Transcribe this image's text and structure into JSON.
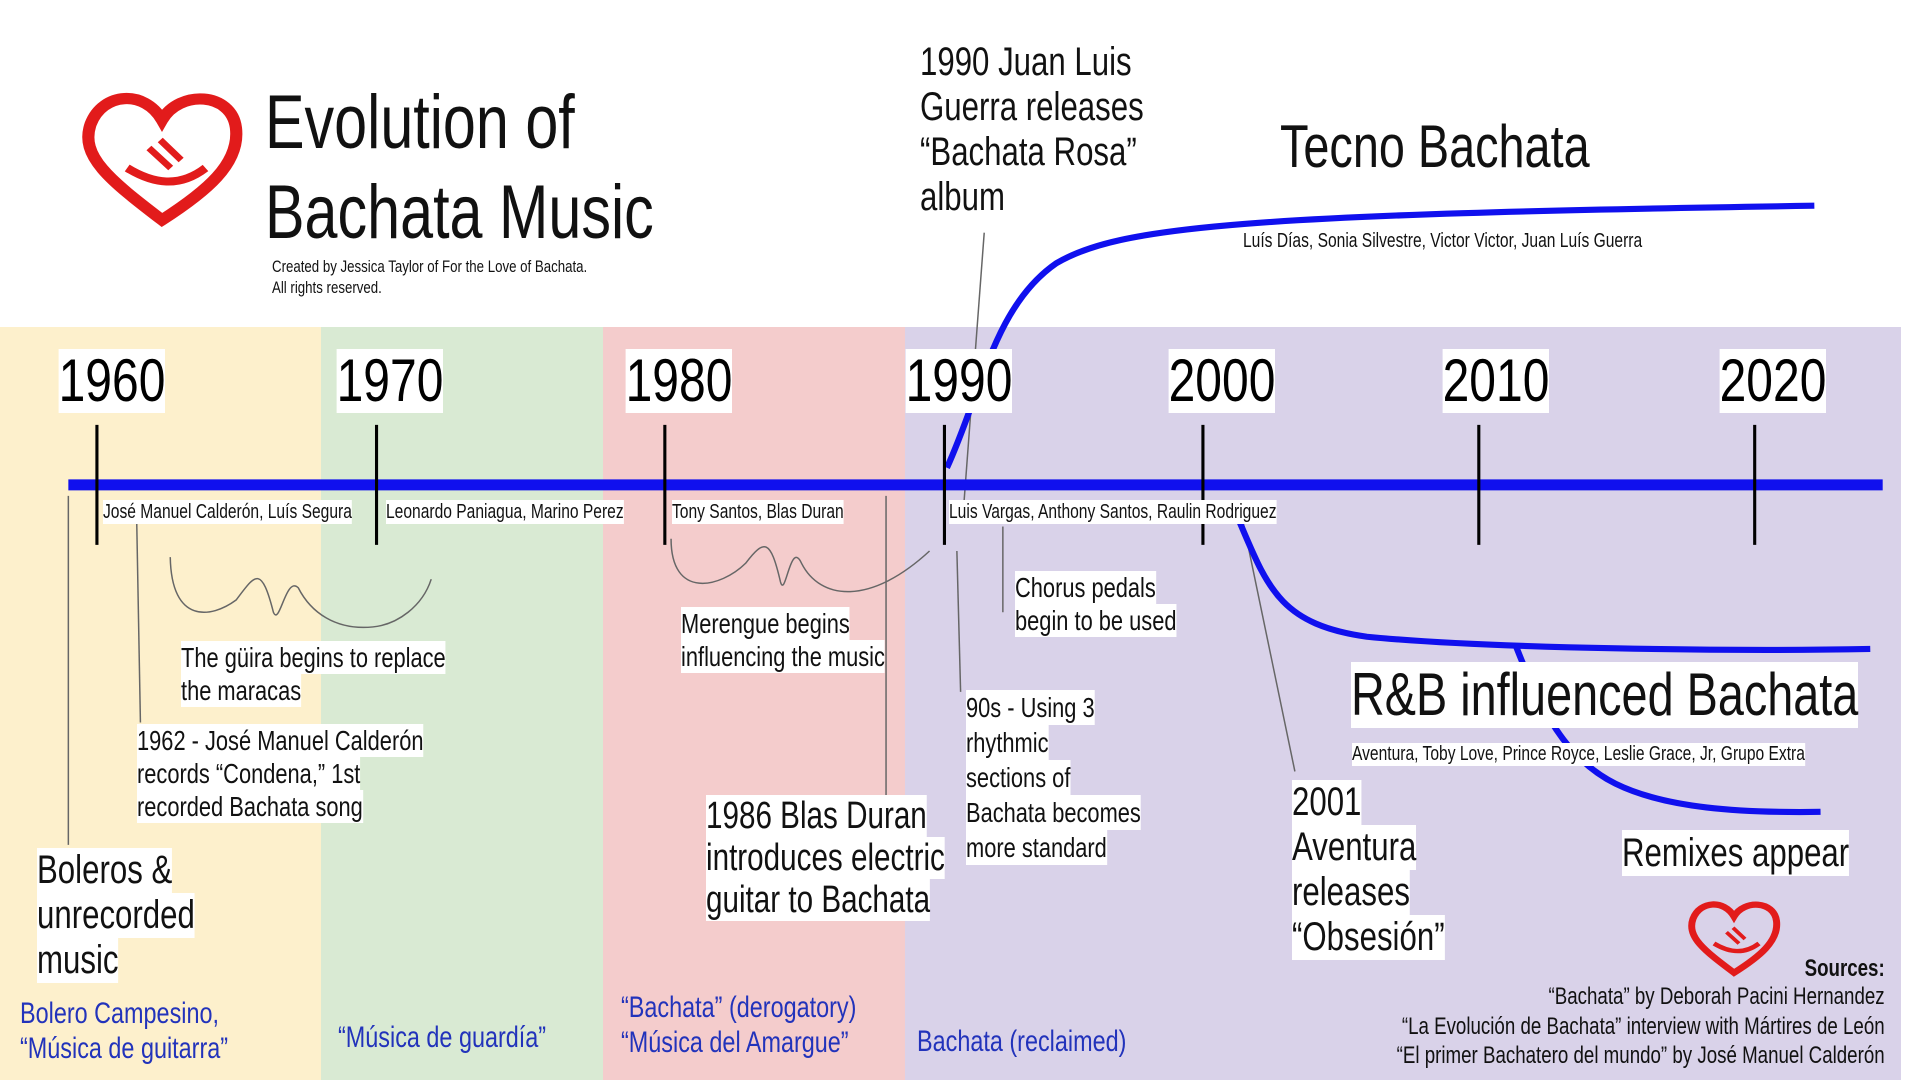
{
  "header": {
    "title_lines": [
      "Evolution of",
      "Bachata Music"
    ],
    "credit_lines": [
      "Created by Jessica Taylor of For the Love of Bachata.",
      "All rights reserved."
    ]
  },
  "timeline": {
    "decades": [
      "1960",
      "1970",
      "1980",
      "1990",
      "2000",
      "2010",
      "2020"
    ]
  },
  "artists": [
    "José Manuel Calderón, Luís Segura",
    "Leonardo Paniagua, Marino Perez",
    "Tony Santos, Blas Duran",
    "Luis Vargas, Anthony Santos, Raulin Rodriguez"
  ],
  "styles": [
    {
      "name": "Tecno Bachata",
      "artists": "Luís Días, Sonia Silvestre, Victor Victor, Juan Luís Guerra"
    },
    {
      "name": "R&B influenced Bachata",
      "artists": "Aventura, Toby Love, Prince Royce, Leslie Grace, Jr, Grupo Extra"
    },
    {
      "name": "Remixes appear"
    }
  ],
  "events": [
    {
      "lines": [
        "1990 Juan Luis",
        "Guerra releases",
        "“Bachata Rosa”",
        "album"
      ]
    },
    {
      "lines": [
        "The güira begins to replace",
        "the maracas"
      ]
    },
    {
      "lines": [
        "1962 - José Manuel Calderón",
        "records “Condena,” 1st",
        "recorded Bachata song"
      ]
    },
    {
      "lines": [
        "Boleros &",
        "unrecorded",
        "music"
      ]
    },
    {
      "lines": [
        "Merengue begins",
        "influencing the music"
      ]
    },
    {
      "lines": [
        "1986 Blas Duran",
        "introduces electric",
        "guitar to Bachata"
      ]
    },
    {
      "lines": [
        "Chorus pedals",
        "begin to be used"
      ]
    },
    {
      "lines": [
        "90s - Using 3",
        "rhythmic",
        "sections of",
        "Bachata becomes",
        "more standard"
      ]
    },
    {
      "lines": [
        "2001",
        "Aventura",
        "releases",
        "“Obsesión”"
      ]
    }
  ],
  "eras": [
    {
      "lines": [
        "Bolero Campesino,",
        "“Música de guitarra”"
      ]
    },
    {
      "lines": [
        "“Música de guardía”"
      ]
    },
    {
      "lines": [
        "“Bachata” (derogatory)",
        "“Música del Amargue”"
      ]
    },
    {
      "lines": [
        "Bachata (reclaimed)"
      ]
    }
  ],
  "sources": {
    "heading": "Sources:",
    "items": [
      "“Bachata” by Deborah Pacini Hernandez",
      "“La Evolución de Bachata” interview with Mártires de León",
      "“El primer Bachatero del mundo” by José Manuel Calderón"
    ]
  }
}
